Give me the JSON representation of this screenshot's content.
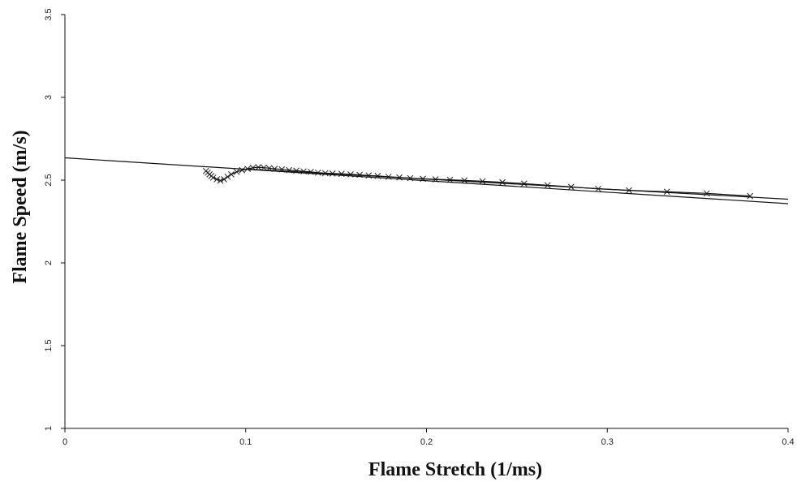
{
  "chart_data": {
    "type": "line",
    "title": "",
    "xlabel": "Flame Stretch (1/ms)",
    "ylabel": "Flame Speed (m/s)",
    "xlim": [
      0,
      0.4
    ],
    "ylim": [
      1,
      3.5
    ],
    "x_ticks": [
      0,
      0.1,
      0.2,
      0.3,
      0.4
    ],
    "x_tick_labels": [
      "0",
      "0.1",
      "0.2",
      "0.3",
      "0.4"
    ],
    "y_ticks": [
      1,
      1.5,
      2,
      2.5,
      3,
      3.5
    ],
    "y_tick_labels": [
      "1",
      "1.5",
      "2",
      "2.5",
      "3",
      "3.5"
    ],
    "grid": false,
    "legend": "none",
    "line_color": "#111111",
    "series": [
      {
        "type": "scatter-line",
        "marker": "x",
        "points": [
          [
            0.078,
            2.555
          ],
          [
            0.079,
            2.545
          ],
          [
            0.08,
            2.535
          ],
          [
            0.081,
            2.525
          ],
          [
            0.082,
            2.515
          ],
          [
            0.084,
            2.505
          ],
          [
            0.086,
            2.497
          ],
          [
            0.088,
            2.505
          ],
          [
            0.09,
            2.52
          ],
          [
            0.092,
            2.535
          ],
          [
            0.095,
            2.55
          ],
          [
            0.098,
            2.56
          ],
          [
            0.101,
            2.568
          ],
          [
            0.104,
            2.575
          ],
          [
            0.107,
            2.578
          ],
          [
            0.11,
            2.575
          ],
          [
            0.113,
            2.572
          ],
          [
            0.116,
            2.568
          ],
          [
            0.12,
            2.565
          ],
          [
            0.124,
            2.56
          ],
          [
            0.128,
            2.557
          ],
          [
            0.132,
            2.553
          ],
          [
            0.136,
            2.55
          ],
          [
            0.14,
            2.545
          ],
          [
            0.144,
            2.542
          ],
          [
            0.148,
            2.54
          ],
          [
            0.153,
            2.538
          ],
          [
            0.158,
            2.535
          ],
          [
            0.163,
            2.532
          ],
          [
            0.168,
            2.528
          ],
          [
            0.173,
            2.525
          ],
          [
            0.179,
            2.52
          ],
          [
            0.185,
            2.516
          ],
          [
            0.191,
            2.512
          ],
          [
            0.198,
            2.508
          ],
          [
            0.205,
            2.505
          ],
          [
            0.213,
            2.502
          ],
          [
            0.221,
            2.498
          ],
          [
            0.231,
            2.493
          ],
          [
            0.242,
            2.487
          ],
          [
            0.254,
            2.479
          ],
          [
            0.267,
            2.469
          ],
          [
            0.28,
            2.459
          ],
          [
            0.295,
            2.447
          ],
          [
            0.312,
            2.438
          ],
          [
            0.333,
            2.43
          ],
          [
            0.355,
            2.42
          ],
          [
            0.379,
            2.404
          ]
        ]
      },
      {
        "type": "fit-line",
        "points": [
          [
            0,
            2.635
          ],
          [
            0.4,
            2.358
          ]
        ]
      },
      {
        "type": "fit-line",
        "points": [
          [
            0.1,
            2.567
          ],
          [
            0.4,
            2.385
          ]
        ]
      }
    ]
  }
}
